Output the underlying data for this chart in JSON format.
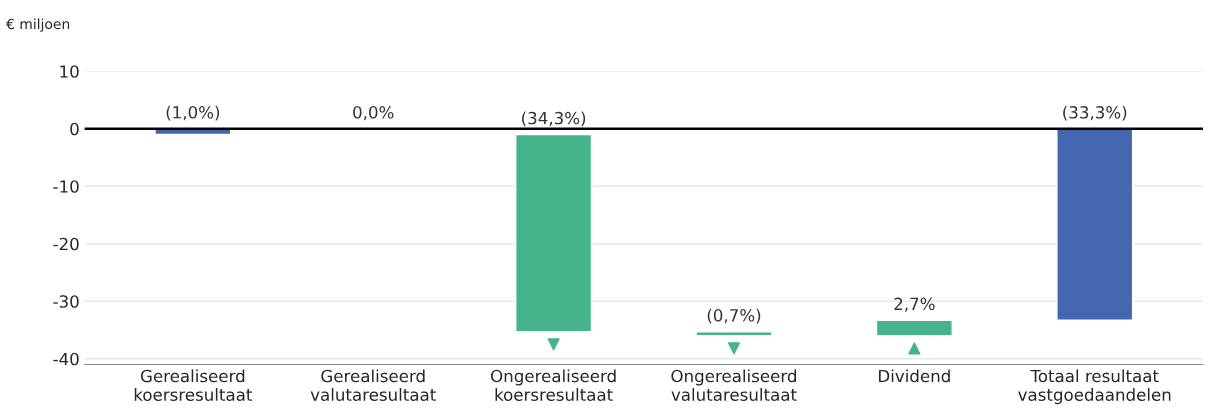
{
  "chart_data": {
    "type": "bar",
    "ylabel": "€ miljoen",
    "categories": [
      "Gerealiseerd\nkoersresultaat",
      "Gerealiseerd\nvalutaresultaat",
      "Ongerealiseerd\nkoersresultaat",
      "Ongerealiseerd\nvalutaresultaat",
      "Dividend",
      "Totaal resultaat\nvastgoedaandelen"
    ],
    "values": [
      -1.0,
      0,
      -34.3,
      -0.7,
      2.7,
      -33.3
    ],
    "base": [
      0,
      null,
      -1.0,
      -35.3,
      -36.0,
      0
    ],
    "colors": [
      "#4466ae",
      "#46b48a",
      "#46b48a",
      "#46b48a",
      "#46b48a",
      "#4466ae"
    ],
    "value_labels": [
      "(1,0%)",
      "0,0%",
      "(34,3%)",
      "(0,7%)",
      "2,7%",
      "(33,3%)"
    ],
    "ylim": [
      -41,
      10
    ],
    "yticks": [
      10,
      0,
      -10,
      -20,
      -30,
      -40
    ],
    "grid": "y",
    "ref_lines": [
      {
        "axis": "y",
        "value": 0,
        "color": "#000000"
      }
    ]
  }
}
